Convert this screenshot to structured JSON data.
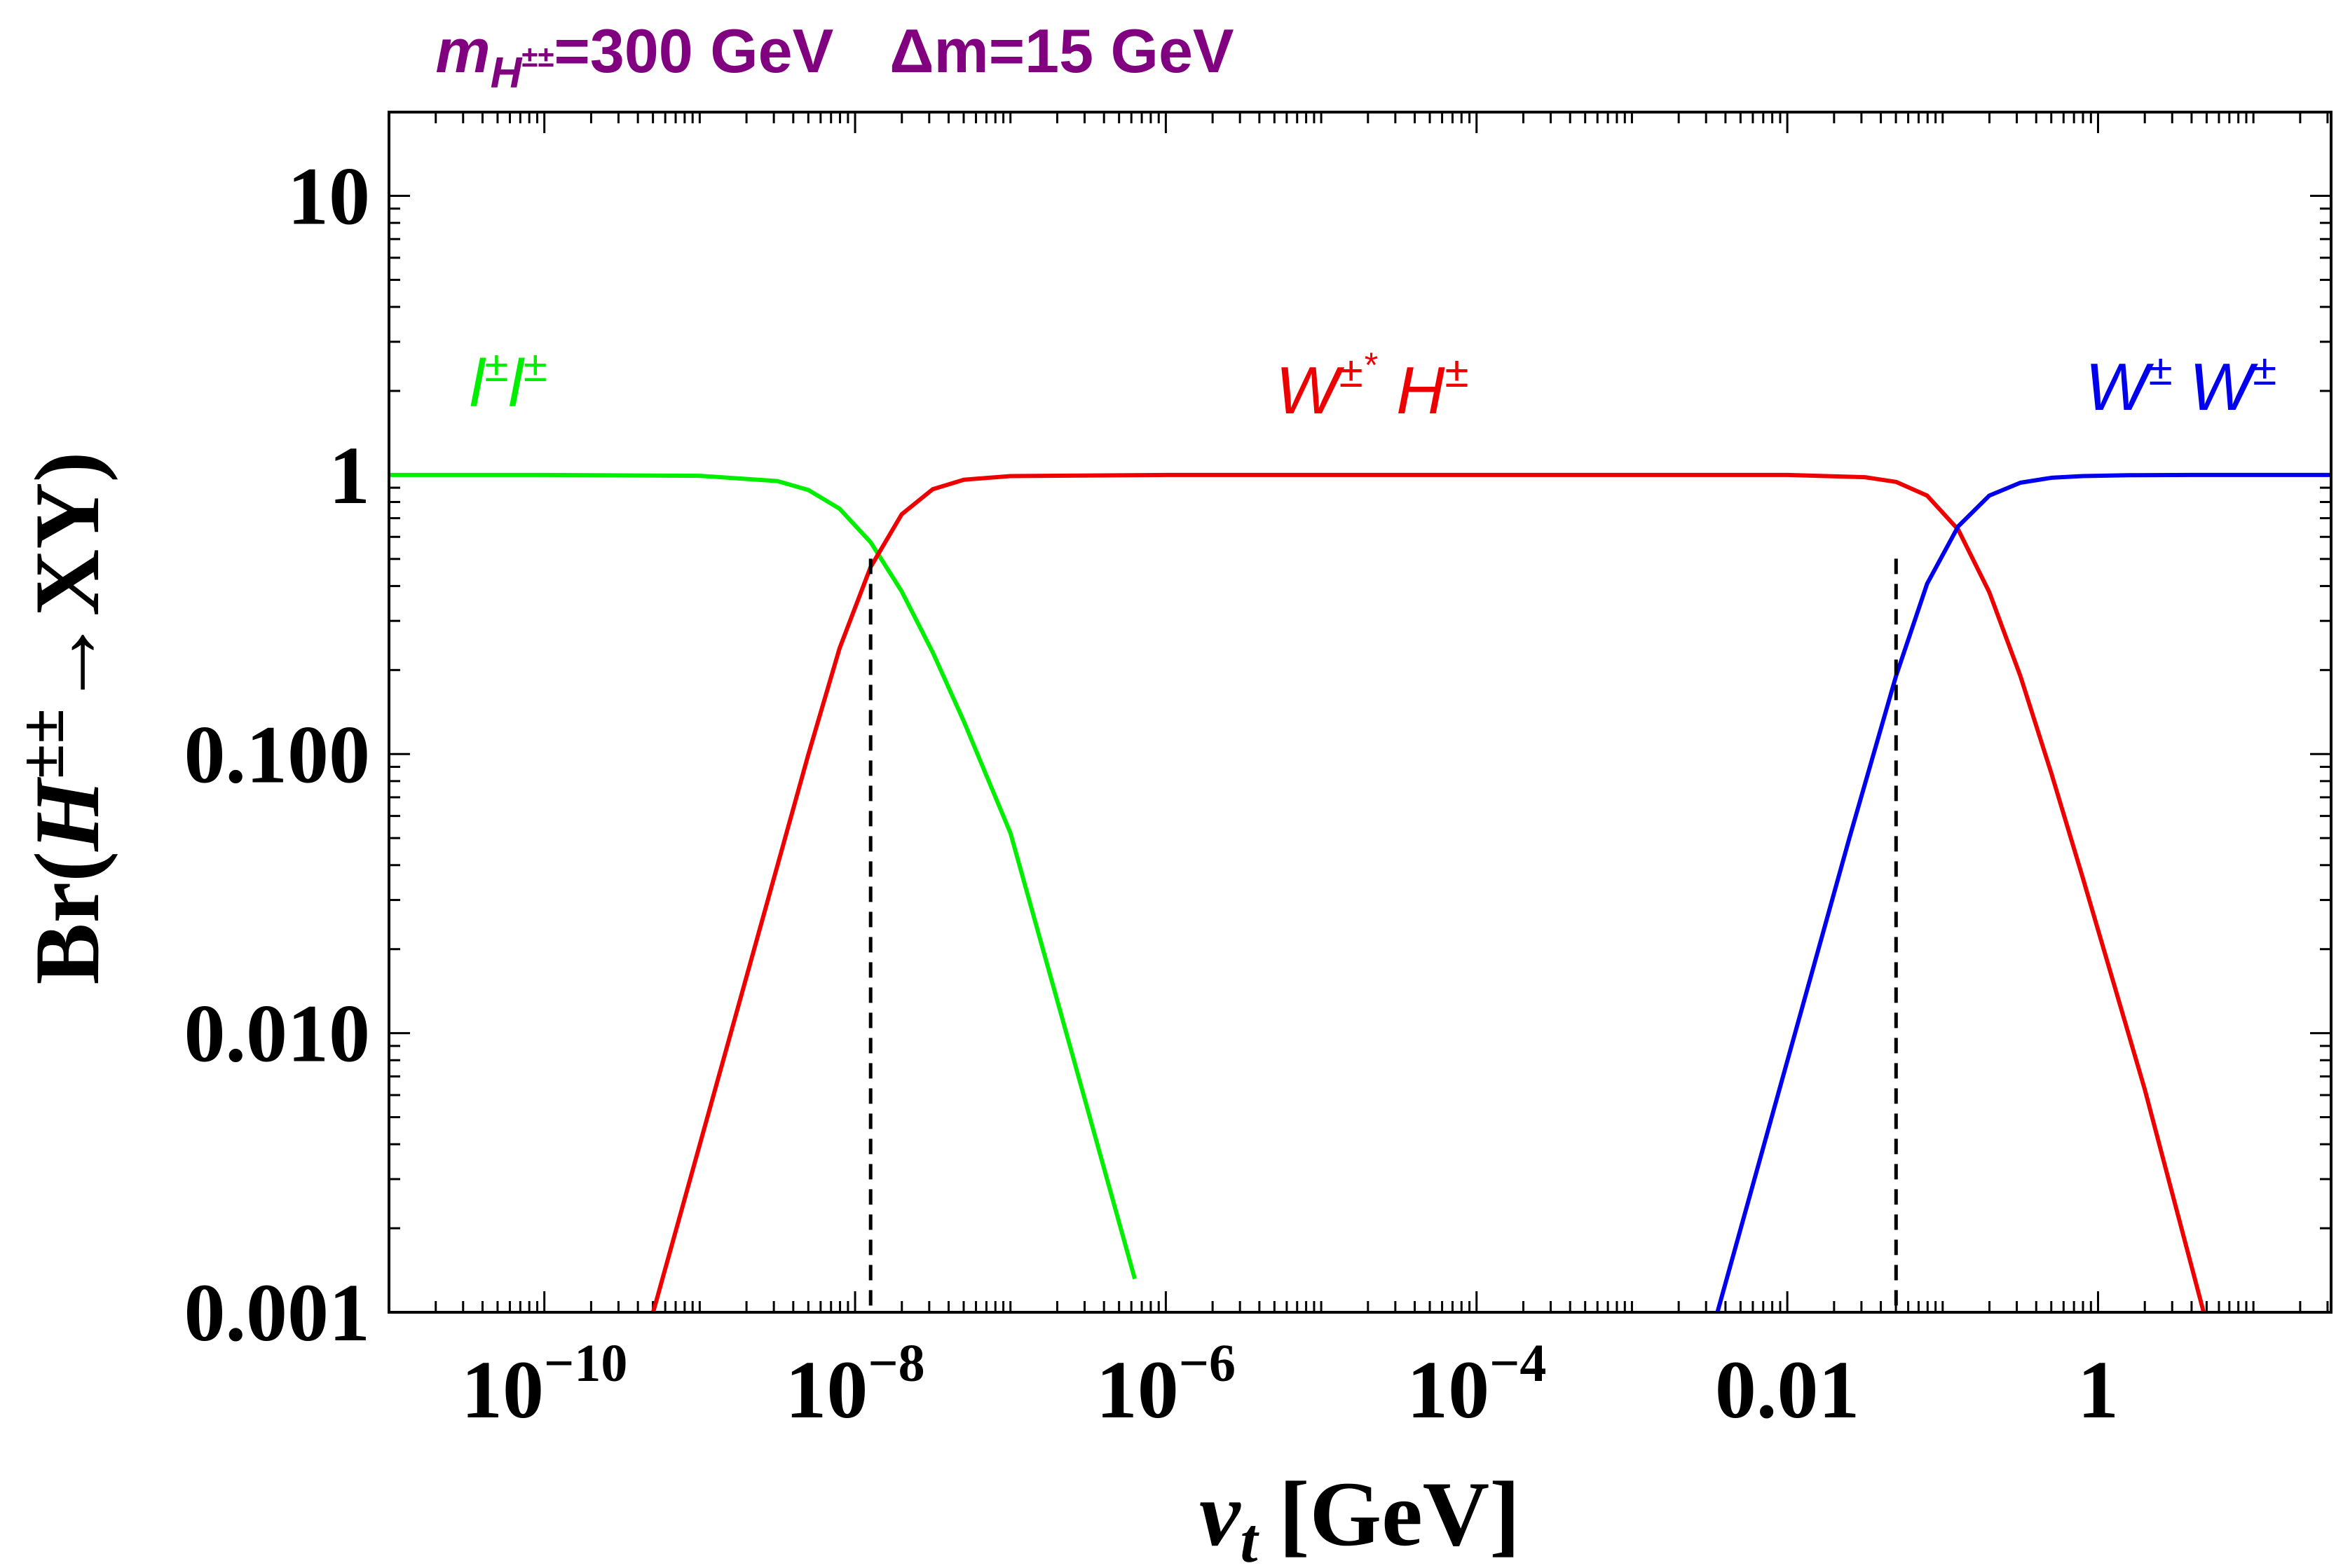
{
  "chart_data": {
    "type": "line",
    "title": {
      "mass_symbol": "m",
      "mass_subscript": "H",
      "mass_sub_sup": "±±",
      "mass_value": "=300 GeV",
      "delta_label": "Δm=15 GeV",
      "color": "#800080"
    },
    "xlabel": {
      "symbol": "v",
      "subscript": "t",
      "unit": "[GeV]"
    },
    "ylabel": {
      "prefix": "Br(",
      "symbol": "H",
      "superscript": "±±",
      "suffix": "→XY)"
    },
    "x_scale": "log10",
    "y_scale": "log10",
    "xlim_log10": [
      -11.0,
      1.5
    ],
    "ylim_log10": [
      -3.0,
      1.3
    ],
    "x_ticks": [
      {
        "log10": -10,
        "base": "10",
        "exp": "−10"
      },
      {
        "log10": -8,
        "base": "10",
        "exp": "−8"
      },
      {
        "log10": -6,
        "base": "10",
        "exp": "−6"
      },
      {
        "log10": -4,
        "base": "10",
        "exp": "−4"
      },
      {
        "log10": -2,
        "label": "0.01"
      },
      {
        "log10": 0,
        "label": "1"
      }
    ],
    "y_ticks": [
      {
        "log10": -3,
        "label": "0.001"
      },
      {
        "log10": -2,
        "label": "0.010"
      },
      {
        "log10": -1,
        "label": "0.100"
      },
      {
        "log10": 0,
        "label": "1"
      },
      {
        "log10": 1,
        "label": "10"
      }
    ],
    "series": [
      {
        "name": "l± l±",
        "label_parts": {
          "p1": "l",
          "s1": "±",
          "p2": "l",
          "s2": "±"
        },
        "color": "#00ee00",
        "x_log10": [
          -11.0,
          -10.0,
          -9.0,
          -8.5,
          -8.3,
          -8.1,
          -7.9,
          -7.7,
          -7.5,
          -7.3,
          -7.0,
          -6.6,
          -6.2
        ],
        "y_log10": [
          0.0,
          0.0,
          -0.003,
          -0.022,
          -0.054,
          -0.121,
          -0.241,
          -0.417,
          -0.636,
          -0.883,
          -1.283,
          -2.08,
          -2.88
        ]
      },
      {
        "name": "W±* H±",
        "label_parts": {
          "p1": "W",
          "s1": "±",
          "star": "*",
          "p2": "H",
          "s2": "±"
        },
        "color": "#ee0000",
        "x_log10": [
          -9.3,
          -8.9,
          -8.5,
          -8.3,
          -8.1,
          -7.9,
          -7.7,
          -7.5,
          -7.3,
          -7.0,
          -6.0,
          -4.0,
          -2.0,
          -1.5,
          -1.3,
          -1.1,
          -0.9,
          -0.7,
          -0.5,
          -0.3,
          -0.1,
          0.3,
          0.68
        ],
        "y_log10": [
          -3.0,
          -2.2,
          -1.4,
          -1.0,
          -0.621,
          -0.33,
          -0.141,
          -0.051,
          -0.017,
          -0.004,
          0.0,
          0.0,
          0.0,
          -0.008,
          -0.025,
          -0.074,
          -0.196,
          -0.42,
          -0.72,
          -1.07,
          -1.44,
          -2.2,
          -3.0
        ]
      },
      {
        "name": "W± W±",
        "label_parts": {
          "p1": "W",
          "s1": "±",
          "p2": "W",
          "s2": "±"
        },
        "color": "#0000ee",
        "x_log10": [
          -2.45,
          -2.0,
          -1.6,
          -1.3,
          -1.1,
          -0.9,
          -0.7,
          -0.5,
          -0.3,
          -0.1,
          0.2,
          0.6,
          1.5
        ],
        "y_log10": [
          -3.0,
          -2.1,
          -1.3,
          -0.72,
          -0.39,
          -0.184,
          -0.074,
          -0.028,
          -0.01,
          -0.004,
          -0.001,
          0.0,
          0.0
        ]
      }
    ],
    "crossings": [
      {
        "x_log10": -7.9,
        "y_log10": -0.3
      },
      {
        "x_log10": -1.3,
        "y_log10": -0.3
      }
    ]
  }
}
